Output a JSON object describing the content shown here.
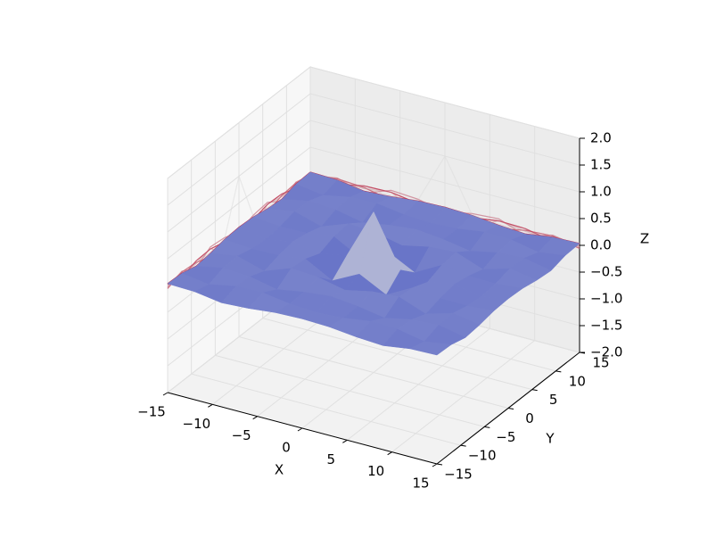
{
  "chart_data": {
    "type": "surface",
    "x_label": "X",
    "y_label": "Y",
    "z_label": "Z",
    "x": [
      -15,
      -12,
      -9,
      -6,
      -3,
      0,
      3,
      6,
      9,
      12,
      15
    ],
    "y": [
      -15,
      -12,
      -9,
      -6,
      -3,
      0,
      3,
      6,
      9,
      12,
      15
    ],
    "z": [
      [
        0.033,
        0.018,
        -0.056,
        -0.027,
        0.026,
        0.043,
        0.026,
        -0.027,
        -0.056,
        0.018,
        0.033
      ],
      [
        0.018,
        -0.056,
        0.043,
        0.056,
        -0.016,
        -0.045,
        -0.016,
        0.056,
        0.043,
        -0.056,
        0.018
      ],
      [
        -0.056,
        0.043,
        0.013,
        -0.091,
        -0.007,
        0.046,
        -0.007,
        -0.091,
        0.013,
        0.043,
        -0.056
      ],
      [
        -0.027,
        0.056,
        -0.091,
        0.095,
        0.061,
        -0.047,
        0.061,
        0.095,
        -0.091,
        0.056,
        -0.027
      ],
      [
        0.026,
        -0.016,
        -0.007,
        0.061,
        -0.21,
        0.047,
        -0.21,
        0.061,
        -0.007,
        -0.016,
        0.026
      ],
      [
        0.043,
        -0.045,
        0.046,
        -0.047,
        0.047,
        1,
        0.047,
        -0.047,
        0.046,
        -0.045,
        0.043
      ],
      [
        0.026,
        -0.016,
        -0.007,
        0.061,
        -0.21,
        0.047,
        -0.21,
        0.061,
        -0.007,
        -0.016,
        0.026
      ],
      [
        -0.027,
        0.056,
        -0.091,
        0.095,
        0.061,
        -0.047,
        0.061,
        0.095,
        -0.091,
        0.056,
        -0.027
      ],
      [
        -0.056,
        0.043,
        0.013,
        -0.091,
        -0.007,
        0.046,
        -0.007,
        -0.091,
        0.013,
        0.043,
        -0.056
      ],
      [
        0.018,
        -0.056,
        0.043,
        0.056,
        -0.016,
        -0.045,
        -0.016,
        0.056,
        0.043,
        -0.056,
        0.018
      ],
      [
        0.033,
        0.018,
        -0.056,
        -0.027,
        0.026,
        0.043,
        0.026,
        -0.027,
        -0.056,
        0.018,
        0.033
      ]
    ],
    "colormap": "coolwarm",
    "xlim": [
      -15,
      15
    ],
    "ylim": [
      -15,
      15
    ],
    "zlim": [
      -2,
      2
    ],
    "xticks": [
      {
        "value": -15,
        "label": "−15"
      },
      {
        "value": -10,
        "label": "−10"
      },
      {
        "value": -5,
        "label": "−5"
      },
      0,
      5,
      10,
      15
    ],
    "yticks": [
      {
        "value": -15,
        "label": "−15"
      },
      {
        "value": -10,
        "label": "−10"
      },
      {
        "value": -5,
        "label": "−5"
      },
      0,
      5,
      10,
      15
    ],
    "zticks": [
      {
        "value": -2,
        "label": "−2.0"
      },
      {
        "value": -1.5,
        "label": "−1.5"
      },
      {
        "value": -1,
        "label": "−1.0"
      },
      {
        "value": -0.5,
        "label": "−0.5"
      },
      {
        "value": 0,
        "label": "0.0"
      },
      {
        "value": 0.5,
        "label": "0.5"
      },
      {
        "value": 1,
        "label": "1.0"
      },
      {
        "value": 1.5,
        "label": "1.5"
      },
      {
        "value": 2,
        "label": "2.0"
      }
    ],
    "grid": true
  }
}
